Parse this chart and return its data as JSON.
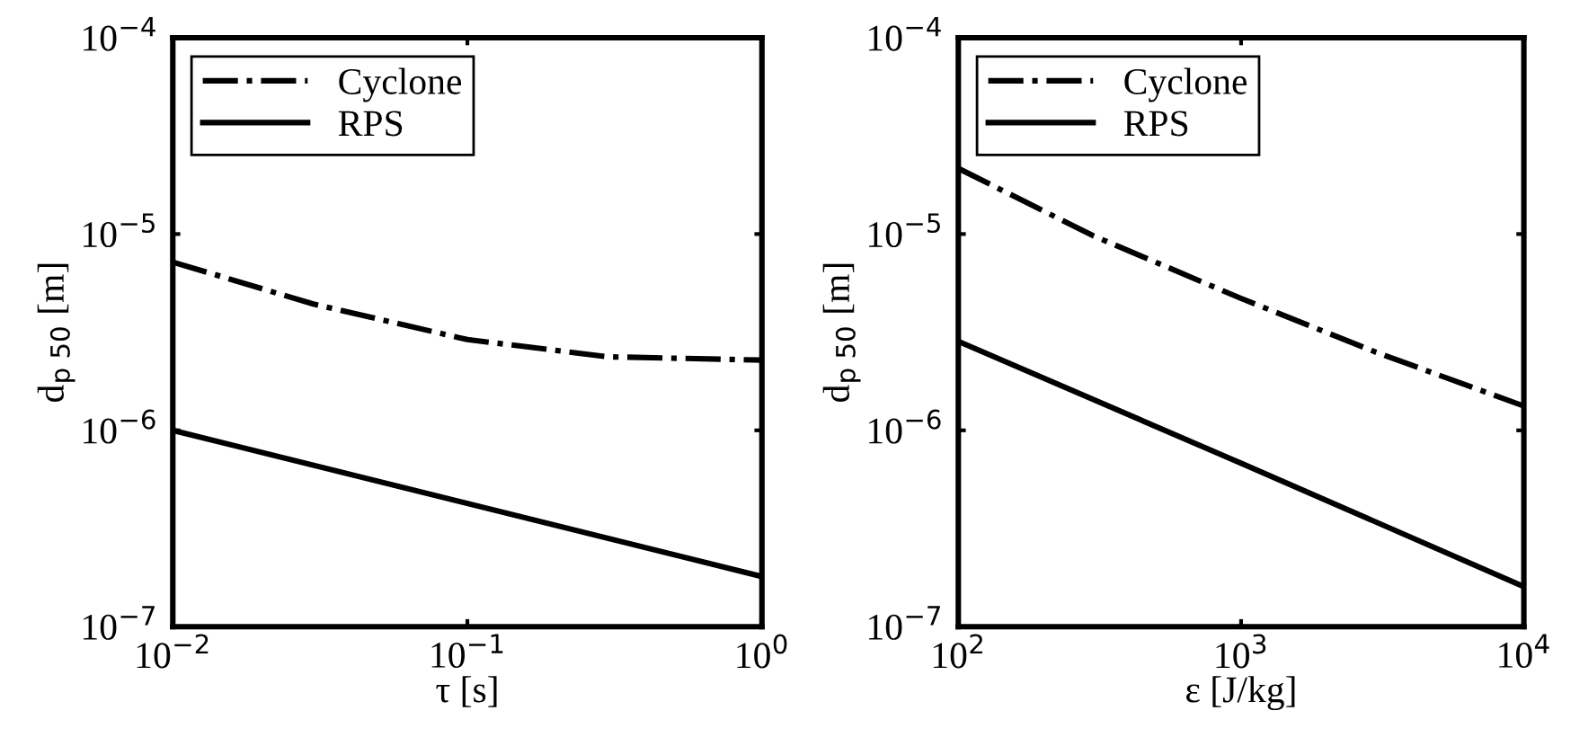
{
  "chart_data": [
    {
      "type": "line",
      "xlabel": "τ [s]",
      "ylabel": "d$_{p 50}$ [m]",
      "log": "xy",
      "grid": false,
      "legend": "top left",
      "xlim": [
        0.01,
        1
      ],
      "xticks": [
        {
          "value": 0.01,
          "label": "10$^{−2}$"
        },
        {
          "value": 0.1,
          "label": "10$^{−1}$"
        },
        {
          "value": 1,
          "label": "10$^{0}$"
        }
      ],
      "ylim": [
        1e-07,
        0.0001
      ],
      "yticks": [
        {
          "value": 1e-07,
          "label": "10$^{−7}$"
        },
        {
          "value": 1e-06,
          "label": "10$^{−6}$"
        },
        {
          "value": 1e-05,
          "label": "10$^{−5}$"
        },
        {
          "value": 0.0001,
          "label": "10$^{−4}$"
        }
      ],
      "series": [
        {
          "name": "Cyclone",
          "color": "#000000",
          "line_style": "dashdot",
          "x": [
            0.01,
            0.03,
            0.1,
            0.3,
            1
          ],
          "values": [
            7.2e-06,
            4.4e-06,
            2.9e-06,
            2.37e-06,
            2.28e-06
          ]
        },
        {
          "name": "RPS",
          "color": "#000000",
          "line_style": "solid",
          "x": [
            0.01,
            1
          ],
          "values": [
            1e-06,
            1.8e-07
          ]
        }
      ]
    },
    {
      "type": "line",
      "xlabel": "ε [J/kg]",
      "ylabel": "d$_{p 50}$ [m]",
      "log": "xy",
      "grid": false,
      "legend": "top left",
      "xlim": [
        100,
        10000
      ],
      "xticks": [
        {
          "value": 100,
          "label": "10$^{2}$"
        },
        {
          "value": 1000,
          "label": "10$^{3}$"
        },
        {
          "value": 10000,
          "label": "10$^{4}$"
        }
      ],
      "ylim": [
        1e-07,
        0.0001
      ],
      "yticks": [
        {
          "value": 1e-07,
          "label": "10$^{−7}$"
        },
        {
          "value": 1e-06,
          "label": "10$^{−6}$"
        },
        {
          "value": 1e-05,
          "label": "10$^{−5}$"
        },
        {
          "value": 0.0001,
          "label": "10$^{−4}$"
        }
      ],
      "series": [
        {
          "name": "Cyclone",
          "color": "#000000",
          "line_style": "dashdot",
          "x": [
            100,
            300,
            1000,
            3000,
            10000
          ],
          "values": [
            2.16e-05,
            9.8e-06,
            4.7e-06,
            2.5e-06,
            1.33e-06
          ]
        },
        {
          "name": "RPS",
          "color": "#000000",
          "line_style": "solid",
          "x": [
            100,
            1000,
            10000
          ],
          "values": [
            2.84e-06,
            6.8e-07,
            1.6e-07
          ]
        }
      ]
    }
  ]
}
